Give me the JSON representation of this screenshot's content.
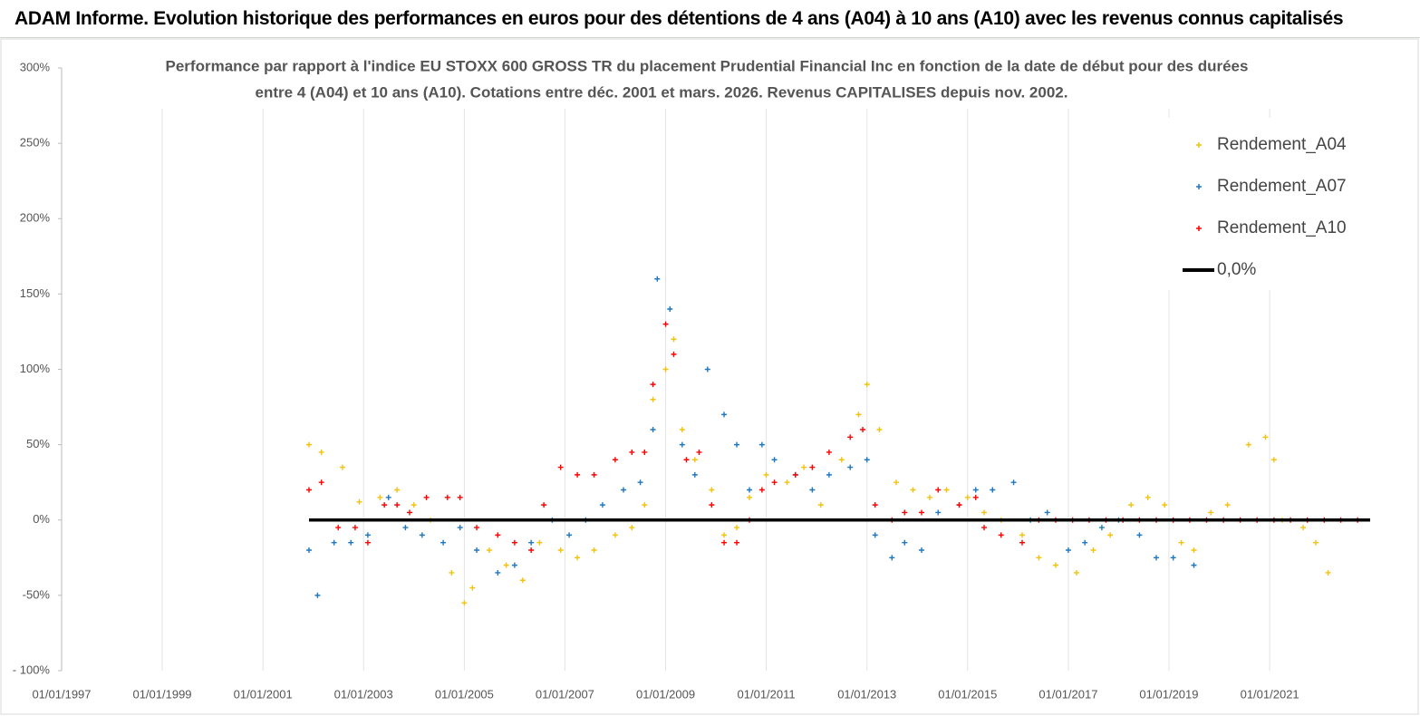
{
  "header": {
    "title": "ADAM Informe. Evolution historique des performances en euros pour des détentions de 4 ans (A04) à 10 ans (A10) avec les revenus connus capitalisés"
  },
  "chart_data": {
    "type": "scatter",
    "subtitle": [
      "Performance par rapport à l'indice EU STOXX 600 GROSS TR  du placement Prudential Financial Inc en fonction de la date de début pour des durées",
      "entre 4 (A04) et 10 ans (A10). Cotations entre déc. 2001 et mars. 2026. Revenus CAPITALISES depuis nov. 2002."
    ],
    "xlim": [
      "1997-01-01",
      "2022-12-31"
    ],
    "xticks": [
      {
        "value": "1997-01-01",
        "label": "01/01/1997"
      },
      {
        "value": "1999-01-01",
        "label": "01/01/1999"
      },
      {
        "value": "2001-01-01",
        "label": "01/01/2001"
      },
      {
        "value": "2003-01-01",
        "label": "01/01/2003"
      },
      {
        "value": "2005-01-01",
        "label": "01/01/2005"
      },
      {
        "value": "2007-01-01",
        "label": "01/01/2007"
      },
      {
        "value": "2009-01-01",
        "label": "01/01/2009"
      },
      {
        "value": "2011-01-01",
        "label": "01/01/2011"
      },
      {
        "value": "2013-01-01",
        "label": "01/01/2013"
      },
      {
        "value": "2015-01-01",
        "label": "01/01/2015"
      },
      {
        "value": "2017-01-01",
        "label": "01/01/2017"
      },
      {
        "value": "2019-01-01",
        "label": "01/01/2019"
      },
      {
        "value": "2021-01-01",
        "label": "01/01/2021"
      }
    ],
    "ylim": [
      -100,
      300
    ],
    "yticks": [
      {
        "value": -100,
        "label": "- 100%"
      },
      {
        "value": -50,
        "label": "-50%"
      },
      {
        "value": 0,
        "label": "0%"
      },
      {
        "value": 50,
        "label": "50%"
      },
      {
        "value": 100,
        "label": "100%"
      },
      {
        "value": 150,
        "label": "150%"
      },
      {
        "value": 200,
        "label": "200%"
      },
      {
        "value": 250,
        "label": "250%"
      },
      {
        "value": 300,
        "label": "300%"
      }
    ],
    "grid": true,
    "legend": "upper right",
    "series": [
      {
        "name": "Rendement_A04",
        "color": "#f4c20d",
        "x": [
          "2001-12-01",
          "2002-03-01",
          "2002-08-01",
          "2002-12-01",
          "2003-05-01",
          "2003-09-01",
          "2004-01-01",
          "2004-05-01",
          "2004-10-01",
          "2005-01-01",
          "2005-03-01",
          "2005-07-01",
          "2005-11-01",
          "2006-03-01",
          "2006-07-01",
          "2006-12-01",
          "2007-04-01",
          "2007-08-01",
          "2008-01-01",
          "2008-05-01",
          "2008-08-01",
          "2008-10-01",
          "2009-01-01",
          "2009-03-01",
          "2009-05-01",
          "2009-08-01",
          "2009-12-01",
          "2010-03-01",
          "2010-06-01",
          "2010-09-01",
          "2011-01-01",
          "2011-06-01",
          "2011-10-01",
          "2012-02-01",
          "2012-07-01",
          "2012-11-01",
          "2013-01-01",
          "2013-04-01",
          "2013-08-01",
          "2013-12-01",
          "2014-04-01",
          "2014-08-01",
          "2015-01-01",
          "2015-05-01",
          "2015-09-01",
          "2016-02-01",
          "2016-06-01",
          "2016-10-01",
          "2017-03-01",
          "2017-07-01",
          "2017-11-01",
          "2018-04-01",
          "2018-08-01",
          "2018-12-01",
          "2019-04-01",
          "2019-07-01",
          "2019-11-01",
          "2020-03-01",
          "2020-08-01",
          "2020-12-01",
          "2021-02-01",
          "2021-04-01",
          "2021-09-01",
          "2021-12-01",
          "2022-03-01"
        ],
        "values": [
          50,
          45,
          35,
          12,
          15,
          20,
          10,
          0,
          -35,
          -55,
          -45,
          -20,
          -30,
          -40,
          -15,
          -20,
          -25,
          -20,
          -10,
          -5,
          10,
          80,
          100,
          120,
          60,
          40,
          20,
          -10,
          -5,
          15,
          30,
          25,
          35,
          10,
          40,
          70,
          90,
          60,
          25,
          20,
          15,
          20,
          15,
          5,
          0,
          -10,
          -25,
          -30,
          -35,
          -20,
          -10,
          10,
          15,
          10,
          -15,
          -20,
          5,
          10,
          50,
          55,
          40,
          0,
          -5,
          -15,
          -35
        ]
      },
      {
        "name": "Rendement_A07",
        "color": "#1f77c0",
        "x": [
          "2001-12-01",
          "2002-02-01",
          "2002-06-01",
          "2002-10-01",
          "2003-02-01",
          "2003-07-01",
          "2003-11-01",
          "2004-03-01",
          "2004-08-01",
          "2004-12-01",
          "2005-04-01",
          "2005-09-01",
          "2006-01-01",
          "2006-05-01",
          "2006-10-01",
          "2007-02-01",
          "2007-06-01",
          "2007-10-01",
          "2008-03-01",
          "2008-07-01",
          "2008-10-01",
          "2008-11-01",
          "2009-02-01",
          "2009-05-01",
          "2009-08-01",
          "2009-11-01",
          "2010-03-01",
          "2010-06-01",
          "2010-09-01",
          "2010-12-01",
          "2011-03-01",
          "2011-08-01",
          "2011-12-01",
          "2012-04-01",
          "2012-09-01",
          "2013-01-01",
          "2013-03-01",
          "2013-07-01",
          "2013-10-01",
          "2014-02-01",
          "2014-06-01",
          "2014-11-01",
          "2015-03-01",
          "2015-07-01",
          "2015-12-01",
          "2016-04-01",
          "2016-08-01",
          "2017-01-01",
          "2017-05-01",
          "2017-09-01",
          "2018-01-01",
          "2018-06-01",
          "2018-10-01",
          "2019-02-01",
          "2019-07-01"
        ],
        "values": [
          -20,
          -50,
          -15,
          -15,
          -10,
          15,
          -5,
          -10,
          -15,
          -5,
          -20,
          -35,
          -30,
          -15,
          0,
          -10,
          0,
          10,
          20,
          25,
          60,
          160,
          140,
          50,
          30,
          100,
          70,
          50,
          20,
          50,
          40,
          30,
          20,
          30,
          35,
          40,
          -10,
          -25,
          -15,
          -20,
          5,
          10,
          20,
          20,
          25,
          0,
          5,
          -20,
          -15,
          -5,
          0,
          -10,
          -25,
          -25,
          -30
        ]
      },
      {
        "name": "Rendement_A10",
        "color": "#ff0000",
        "x": [
          "2001-12-01",
          "2002-03-01",
          "2002-07-01",
          "2002-11-01",
          "2003-02-01",
          "2003-06-01",
          "2003-09-01",
          "2003-12-01",
          "2004-04-01",
          "2004-09-01",
          "2004-12-01",
          "2005-04-01",
          "2005-09-01",
          "2006-01-01",
          "2006-05-01",
          "2006-08-01",
          "2006-12-01",
          "2007-04-01",
          "2007-08-01",
          "2008-01-01",
          "2008-05-01",
          "2008-08-01",
          "2008-10-01",
          "2009-01-01",
          "2009-03-01",
          "2009-06-01",
          "2009-09-01",
          "2009-12-01",
          "2010-03-01",
          "2010-06-01",
          "2010-09-01",
          "2010-12-01",
          "2011-03-01",
          "2011-08-01",
          "2011-12-01",
          "2012-04-01",
          "2012-09-01",
          "2012-12-01",
          "2013-03-01",
          "2013-07-01",
          "2013-10-01",
          "2014-02-01",
          "2014-06-01",
          "2014-11-01",
          "2015-03-01",
          "2015-05-01",
          "2015-09-01",
          "2016-02-01",
          "2016-06-01",
          "2016-10-01",
          "2017-02-01",
          "2017-06-01",
          "2017-10-01",
          "2018-02-01",
          "2018-06-01",
          "2018-10-01",
          "2019-02-01",
          "2019-06-01",
          "2019-10-01",
          "2020-02-01",
          "2020-06-01",
          "2020-10-01",
          "2021-02-01",
          "2021-06-01",
          "2021-10-01",
          "2022-02-01",
          "2022-06-01",
          "2022-10-01"
        ],
        "values": [
          20,
          25,
          -5,
          -5,
          -15,
          10,
          10,
          5,
          15,
          15,
          15,
          -5,
          -10,
          -15,
          -20,
          10,
          35,
          30,
          30,
          40,
          45,
          45,
          90,
          130,
          110,
          40,
          45,
          10,
          -15,
          -15,
          0,
          20,
          25,
          30,
          35,
          45,
          55,
          60,
          10,
          0,
          5,
          5,
          20,
          10,
          15,
          -5,
          -10,
          -15,
          0,
          0,
          0,
          0,
          0,
          0,
          0,
          0,
          0,
          0,
          0,
          0,
          0,
          0,
          0,
          0,
          0,
          0,
          0,
          0
        ]
      },
      {
        "name": "0,0%",
        "color": "#000000",
        "type": "line",
        "x": [
          "2001-12-01",
          "2022-12-31"
        ],
        "values": [
          0,
          0
        ]
      }
    ]
  }
}
